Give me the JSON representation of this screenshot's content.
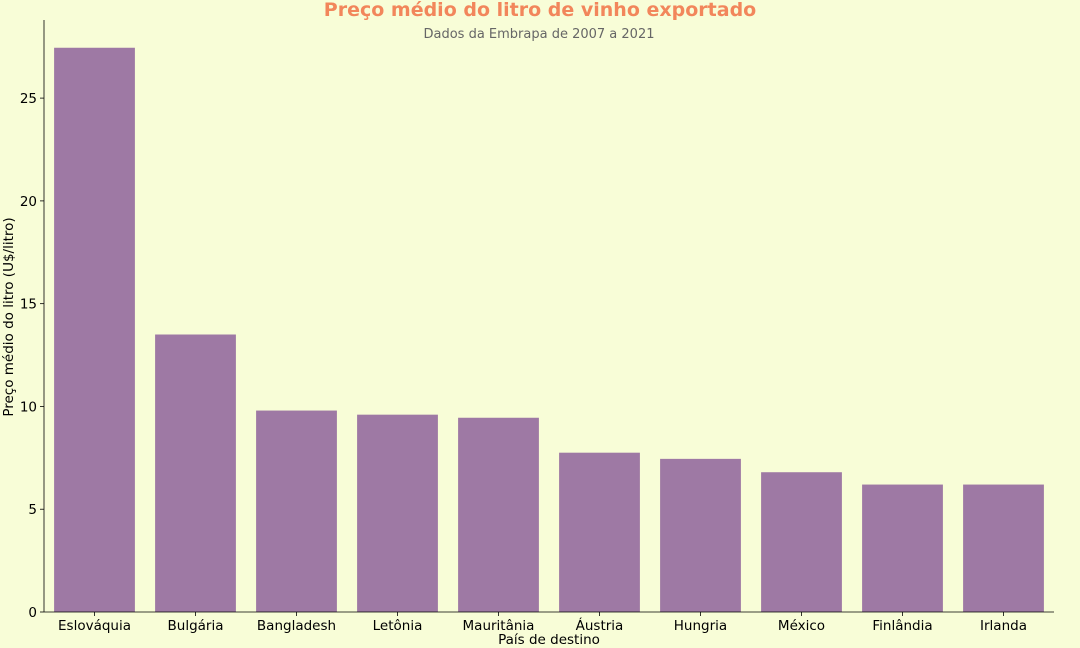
{
  "chart_data": {
    "type": "bar",
    "title": "Preço médio do litro de vinho exportado",
    "subtitle": "Dados da Embrapa de  2007 a 2021",
    "xlabel": "País de destino",
    "ylabel": "Preço médio do litro (U$/litro)",
    "categories": [
      "Eslováquia",
      "Bulgária",
      "Bangladesh",
      "Letônia",
      "Mauritânia",
      "Áustria",
      "Hungria",
      "México",
      "Finlândia",
      "Irlanda"
    ],
    "values": [
      27.45,
      13.5,
      9.8,
      9.6,
      9.45,
      7.75,
      7.45,
      6.8,
      6.2,
      6.2
    ],
    "ylim": [
      0,
      28.8
    ],
    "yticks": [
      0,
      5,
      10,
      15,
      20,
      25
    ],
    "grid": false,
    "colors": {
      "background": "#f8fdd7",
      "bar": "#9e79a4",
      "title": "#f2865b",
      "subtitle": "#666666",
      "axis": "#000000"
    }
  }
}
